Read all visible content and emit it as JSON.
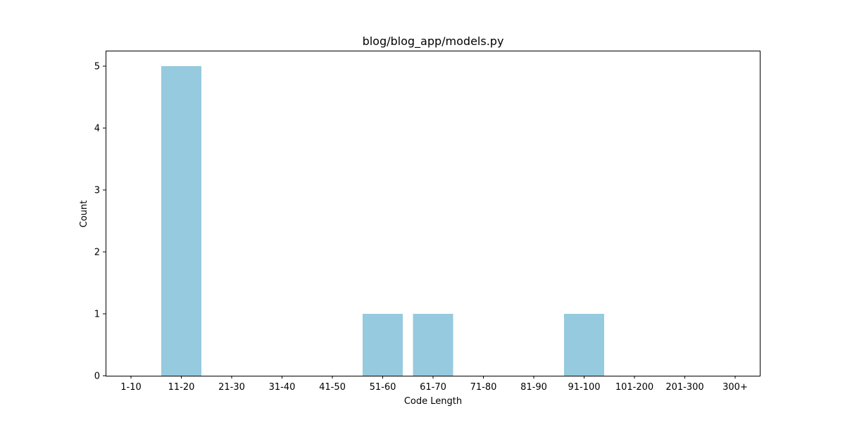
{
  "chart_data": {
    "type": "bar",
    "title": "blog/blog_app/models.py",
    "xlabel": "Code Length",
    "ylabel": "Count",
    "categories": [
      "1-10",
      "11-20",
      "21-30",
      "31-40",
      "41-50",
      "51-60",
      "61-70",
      "71-80",
      "81-90",
      "91-100",
      "101-200",
      "201-300",
      "300+"
    ],
    "values": [
      0,
      5,
      0,
      0,
      0,
      1,
      1,
      0,
      0,
      1,
      0,
      0,
      0
    ],
    "ylim": [
      0,
      5.25
    ],
    "yticks": [
      "0",
      "1",
      "2",
      "3",
      "4",
      "5"
    ],
    "bar_color": "#96cade",
    "grid": false,
    "legend": "none"
  }
}
